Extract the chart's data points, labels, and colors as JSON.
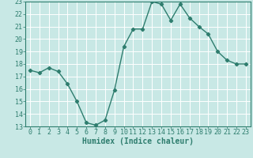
{
  "x": [
    0,
    1,
    2,
    3,
    4,
    5,
    6,
    7,
    8,
    9,
    10,
    11,
    12,
    13,
    14,
    15,
    16,
    17,
    18,
    19,
    20,
    21,
    22,
    23
  ],
  "y": [
    17.5,
    17.3,
    17.7,
    17.4,
    16.4,
    15.0,
    13.3,
    13.1,
    13.5,
    15.9,
    19.4,
    20.8,
    20.8,
    23.0,
    22.8,
    21.5,
    22.8,
    21.7,
    21.0,
    20.4,
    19.0,
    18.3,
    18.0,
    18.0
  ],
  "line_color": "#2e7d6e",
  "marker": "D",
  "marker_size": 2.2,
  "bg_color": "#c8e8e5",
  "grid_color": "#ffffff",
  "xlabel": "Humidex (Indice chaleur)",
  "xlim": [
    -0.5,
    23.5
  ],
  "ylim": [
    13,
    23
  ],
  "yticks": [
    13,
    14,
    15,
    16,
    17,
    18,
    19,
    20,
    21,
    22,
    23
  ],
  "xticks": [
    0,
    1,
    2,
    3,
    4,
    5,
    6,
    7,
    8,
    9,
    10,
    11,
    12,
    13,
    14,
    15,
    16,
    17,
    18,
    19,
    20,
    21,
    22,
    23
  ],
  "xlabel_fontsize": 7.0,
  "tick_fontsize": 6.0,
  "line_width": 1.0
}
